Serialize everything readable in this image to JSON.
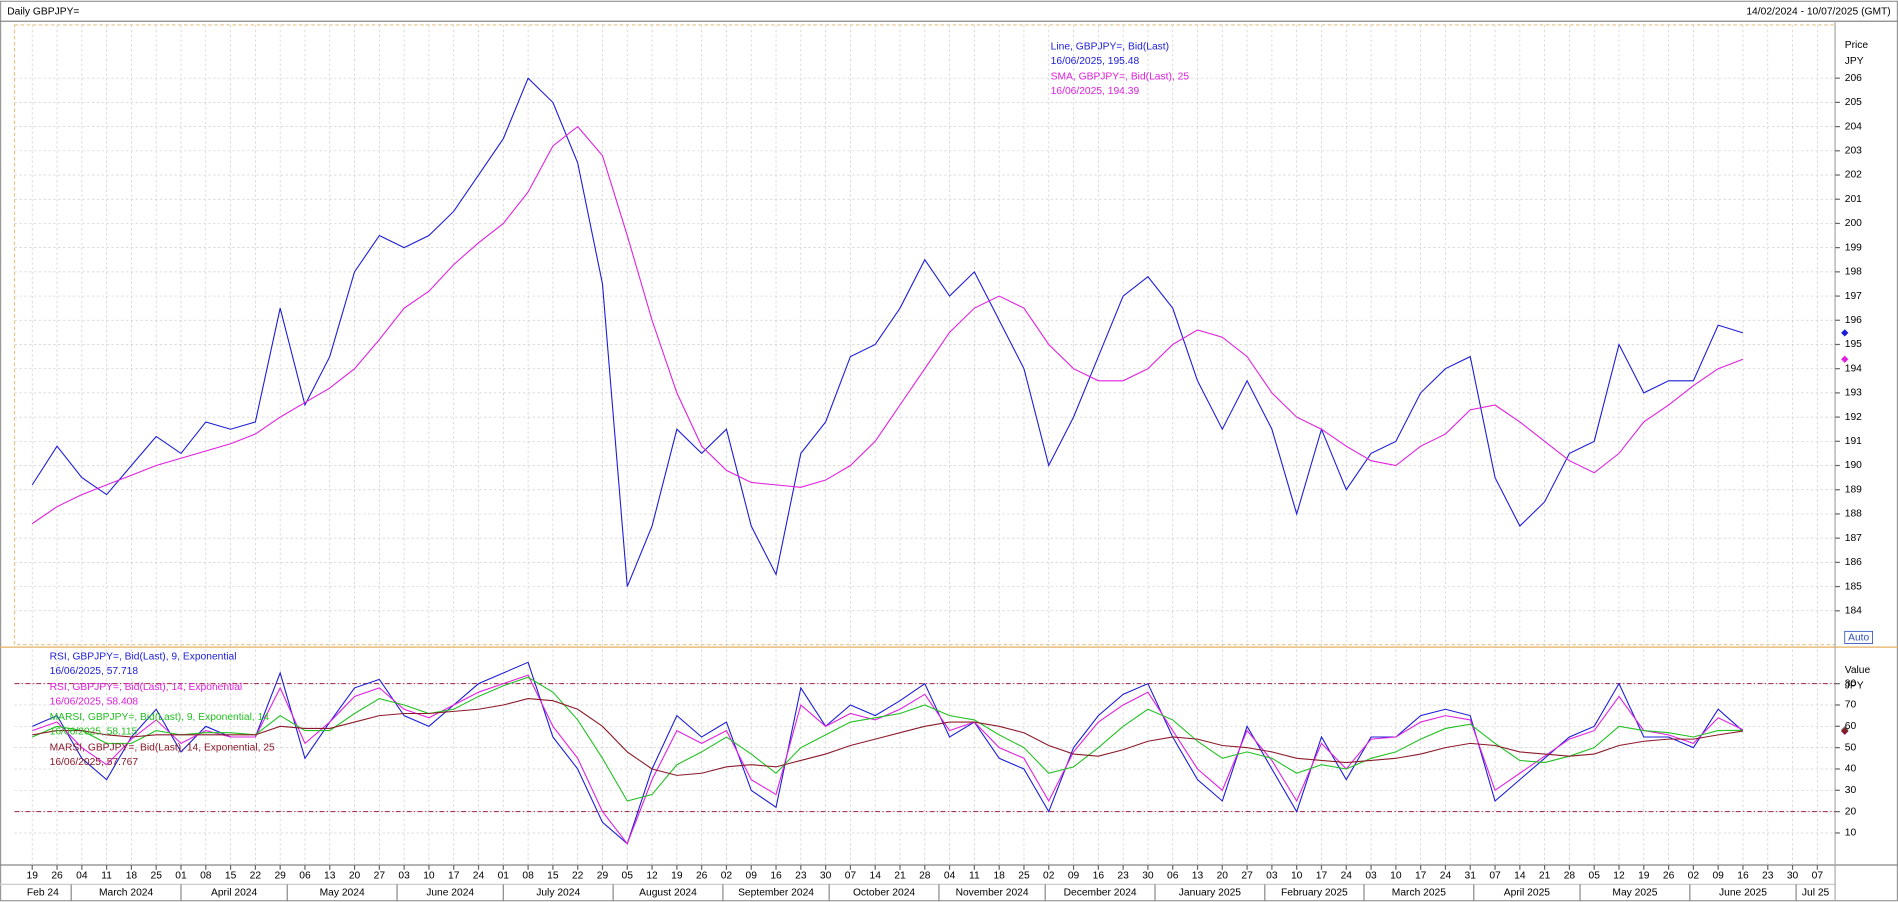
{
  "chart_data": {
    "type": "line",
    "title": "Daily GBPJPY=",
    "date_range": "14/02/2024 - 10/07/2025 (GMT)",
    "button": "Auto",
    "grid": true,
    "xlim": [
      "2024-02-14",
      "2025-07-12"
    ],
    "x": [
      "2024-02-19",
      "2024-02-26",
      "2024-03-04",
      "2024-03-11",
      "2024-03-18",
      "2024-03-25",
      "2024-04-01",
      "2024-04-08",
      "2024-04-15",
      "2024-04-22",
      "2024-04-29",
      "2024-05-06",
      "2024-05-13",
      "2024-05-20",
      "2024-05-27",
      "2024-06-03",
      "2024-06-10",
      "2024-06-17",
      "2024-06-24",
      "2024-07-01",
      "2024-07-08",
      "2024-07-15",
      "2024-07-22",
      "2024-07-29",
      "2024-08-05",
      "2024-08-12",
      "2024-08-19",
      "2024-08-26",
      "2024-09-02",
      "2024-09-09",
      "2024-09-16",
      "2024-09-23",
      "2024-09-30",
      "2024-10-07",
      "2024-10-14",
      "2024-10-21",
      "2024-10-28",
      "2024-11-04",
      "2024-11-11",
      "2024-11-18",
      "2024-11-25",
      "2024-12-02",
      "2024-12-09",
      "2024-12-16",
      "2024-12-23",
      "2024-12-30",
      "2025-01-06",
      "2025-01-13",
      "2025-01-20",
      "2025-01-27",
      "2025-02-03",
      "2025-02-10",
      "2025-02-17",
      "2025-02-24",
      "2025-03-03",
      "2025-03-10",
      "2025-03-17",
      "2025-03-24",
      "2025-03-31",
      "2025-04-07",
      "2025-04-14",
      "2025-04-21",
      "2025-04-28",
      "2025-05-05",
      "2025-05-12",
      "2025-05-19",
      "2025-05-26",
      "2025-06-02",
      "2025-06-09",
      "2025-06-16"
    ],
    "xticks": [
      {
        "value": "2024-02-19",
        "label": "19"
      },
      {
        "value": "2024-02-26",
        "label": "26"
      },
      {
        "value": "2024-03-04",
        "label": "04"
      },
      {
        "value": "2024-03-11",
        "label": "11"
      },
      {
        "value": "2024-03-18",
        "label": "18"
      },
      {
        "value": "2024-03-25",
        "label": "25"
      },
      {
        "value": "2024-04-01",
        "label": "01"
      },
      {
        "value": "2024-04-08",
        "label": "08"
      },
      {
        "value": "2024-04-15",
        "label": "15"
      },
      {
        "value": "2024-04-22",
        "label": "22"
      },
      {
        "value": "2024-04-29",
        "label": "29"
      },
      {
        "value": "2024-05-06",
        "label": "06"
      },
      {
        "value": "2024-05-13",
        "label": "13"
      },
      {
        "value": "2024-05-20",
        "label": "20"
      },
      {
        "value": "2024-05-27",
        "label": "27"
      },
      {
        "value": "2024-06-03",
        "label": "03"
      },
      {
        "value": "2024-06-10",
        "label": "10"
      },
      {
        "value": "2024-06-17",
        "label": "17"
      },
      {
        "value": "2024-06-24",
        "label": "24"
      },
      {
        "value": "2024-07-01",
        "label": "01"
      },
      {
        "value": "2024-07-08",
        "label": "08"
      },
      {
        "value": "2024-07-15",
        "label": "15"
      },
      {
        "value": "2024-07-22",
        "label": "22"
      },
      {
        "value": "2024-07-29",
        "label": "29"
      },
      {
        "value": "2024-08-05",
        "label": "05"
      },
      {
        "value": "2024-08-12",
        "label": "12"
      },
      {
        "value": "2024-08-19",
        "label": "19"
      },
      {
        "value": "2024-08-26",
        "label": "26"
      },
      {
        "value": "2024-09-02",
        "label": "02"
      },
      {
        "value": "2024-09-09",
        "label": "09"
      },
      {
        "value": "2024-09-16",
        "label": "16"
      },
      {
        "value": "2024-09-23",
        "label": "23"
      },
      {
        "value": "2024-09-30",
        "label": "30"
      },
      {
        "value": "2024-10-07",
        "label": "07"
      },
      {
        "value": "2024-10-14",
        "label": "14"
      },
      {
        "value": "2024-10-21",
        "label": "21"
      },
      {
        "value": "2024-10-28",
        "label": "28"
      },
      {
        "value": "2024-11-04",
        "label": "04"
      },
      {
        "value": "2024-11-11",
        "label": "11"
      },
      {
        "value": "2024-11-18",
        "label": "18"
      },
      {
        "value": "2024-11-25",
        "label": "25"
      },
      {
        "value": "2024-12-02",
        "label": "02"
      },
      {
        "value": "2024-12-09",
        "label": "09"
      },
      {
        "value": "2024-12-16",
        "label": "16"
      },
      {
        "value": "2024-12-23",
        "label": "23"
      },
      {
        "value": "2024-12-30",
        "label": "30"
      },
      {
        "value": "2025-01-06",
        "label": "06"
      },
      {
        "value": "2025-01-13",
        "label": "13"
      },
      {
        "value": "2025-01-20",
        "label": "20"
      },
      {
        "value": "2025-01-27",
        "label": "27"
      },
      {
        "value": "2025-02-03",
        "label": "03"
      },
      {
        "value": "2025-02-10",
        "label": "10"
      },
      {
        "value": "2025-02-17",
        "label": "17"
      },
      {
        "value": "2025-02-24",
        "label": "24"
      },
      {
        "value": "2025-03-03",
        "label": "03"
      },
      {
        "value": "2025-03-10",
        "label": "10"
      },
      {
        "value": "2025-03-17",
        "label": "17"
      },
      {
        "value": "2025-03-24",
        "label": "24"
      },
      {
        "value": "2025-03-31",
        "label": "31"
      },
      {
        "value": "2025-04-07",
        "label": "07"
      },
      {
        "value": "2025-04-14",
        "label": "14"
      },
      {
        "value": "2025-04-21",
        "label": "21"
      },
      {
        "value": "2025-04-28",
        "label": "28"
      },
      {
        "value": "2025-05-05",
        "label": "05"
      },
      {
        "value": "2025-05-12",
        "label": "12"
      },
      {
        "value": "2025-05-19",
        "label": "19"
      },
      {
        "value": "2025-05-26",
        "label": "26"
      },
      {
        "value": "2025-06-02",
        "label": "02"
      },
      {
        "value": "2025-06-09",
        "label": "09"
      },
      {
        "value": "2025-06-16",
        "label": "16"
      },
      {
        "value": "2025-06-23",
        "label": "23"
      },
      {
        "value": "2025-06-30",
        "label": "30"
      },
      {
        "value": "2025-07-07",
        "label": "07"
      }
    ],
    "month_labels": [
      {
        "value": "2024-02-01",
        "label": "Feb 24"
      },
      {
        "value": "2024-03-01",
        "label": "March 2024"
      },
      {
        "value": "2024-04-01",
        "label": "April 2024"
      },
      {
        "value": "2024-05-01",
        "label": "May 2024"
      },
      {
        "value": "2024-06-01",
        "label": "June 2024"
      },
      {
        "value": "2024-07-01",
        "label": "July 2024"
      },
      {
        "value": "2024-08-01",
        "label": "August 2024"
      },
      {
        "value": "2024-09-01",
        "label": "September 2024"
      },
      {
        "value": "2024-10-01",
        "label": "October 2024"
      },
      {
        "value": "2024-11-01",
        "label": "November 2024"
      },
      {
        "value": "2024-12-01",
        "label": "December 2024"
      },
      {
        "value": "2025-01-01",
        "label": "January 2025"
      },
      {
        "value": "2025-02-01",
        "label": "February 2025"
      },
      {
        "value": "2025-03-01",
        "label": "March 2025"
      },
      {
        "value": "2025-04-01",
        "label": "April 2025"
      },
      {
        "value": "2025-05-01",
        "label": "May 2025"
      },
      {
        "value": "2025-06-01",
        "label": "June 2025"
      },
      {
        "value": "2025-07-01",
        "label": "Jul 25"
      }
    ],
    "panels": [
      {
        "axis_title": "Price",
        "axis_unit": "JPY",
        "ylim": [
          182.6,
          208.2
        ],
        "yticks": [
          184,
          185,
          186,
          187,
          188,
          189,
          190,
          191,
          192,
          193,
          194,
          195,
          196,
          197,
          198,
          199,
          200,
          201,
          202,
          203,
          204,
          205,
          206
        ],
        "series": [
          {
            "name": "Line, GBPJPY=, Bid(Last)",
            "legend_value": "16/06/2025, 195.48",
            "color": "#1c1cd8",
            "values": [
              189.2,
              190.8,
              189.5,
              188.8,
              190.0,
              191.2,
              190.5,
              191.8,
              191.5,
              191.8,
              196.5,
              192.5,
              194.5,
              198.0,
              199.5,
              199.0,
              199.5,
              200.5,
              202.0,
              203.5,
              206.0,
              205.0,
              202.5,
              197.5,
              185.0,
              187.5,
              191.5,
              190.5,
              191.5,
              187.5,
              185.5,
              190.5,
              191.8,
              194.5,
              195.0,
              196.5,
              198.5,
              197.0,
              198.0,
              196.0,
              194.0,
              190.0,
              192.0,
              194.5,
              197.0,
              197.8,
              196.5,
              193.5,
              191.5,
              193.5,
              191.5,
              188.0,
              191.5,
              189.0,
              190.5,
              191.0,
              193.0,
              194.0,
              194.5,
              189.5,
              187.5,
              188.5,
              190.5,
              191.0,
              195.0,
              193.0,
              193.5,
              193.5,
              195.8,
              195.48
            ]
          },
          {
            "name": "SMA, GBPJPY=, Bid(Last),  25",
            "legend_value": "16/06/2025, 194.39",
            "color": "#e020e0",
            "values": [
              187.6,
              188.3,
              188.8,
              189.2,
              189.6,
              190.0,
              190.3,
              190.6,
              190.9,
              191.3,
              192.0,
              192.6,
              193.2,
              194.0,
              195.2,
              196.5,
              197.2,
              198.3,
              199.2,
              200.0,
              201.3,
              203.2,
              204.0,
              202.8,
              199.5,
              196.0,
              193.0,
              190.8,
              189.8,
              189.3,
              189.2,
              189.1,
              189.4,
              190.0,
              191.0,
              192.5,
              194.0,
              195.5,
              196.5,
              197.0,
              196.5,
              195.0,
              194.0,
              193.5,
              193.5,
              194.0,
              195.0,
              195.6,
              195.3,
              194.5,
              193.0,
              192.0,
              191.5,
              190.8,
              190.2,
              190.0,
              190.8,
              191.3,
              192.3,
              192.5,
              191.8,
              191.0,
              190.2,
              189.7,
              190.5,
              191.8,
              192.5,
              193.3,
              194.0,
              194.39
            ]
          }
        ]
      },
      {
        "axis_title": "Value",
        "axis_unit": "JPY",
        "ylim": [
          -5,
          96
        ],
        "yticks": [
          10,
          20,
          30,
          40,
          50,
          60,
          70,
          80
        ],
        "ref_lines": [
          80,
          20
        ],
        "ref_color": "#a02040",
        "series": [
          {
            "name": "RSI, GBPJPY=, Bid(Last),  9, Exponential",
            "legend_value": "16/06/2025, 57.718",
            "color": "#1c1cd8",
            "values": [
              60,
              65,
              45,
              35,
              55,
              68,
              48,
              60,
              55,
              55,
              85,
              45,
              62,
              78,
              82,
              65,
              60,
              70,
              80,
              85,
              90,
              55,
              40,
              15,
              5,
              40,
              65,
              55,
              62,
              30,
              22,
              78,
              60,
              70,
              65,
              72,
              80,
              55,
              62,
              45,
              40,
              20,
              50,
              65,
              75,
              80,
              55,
              35,
              25,
              60,
              40,
              20,
              55,
              35,
              55,
              55,
              65,
              68,
              65,
              25,
              35,
              45,
              55,
              60,
              80,
              55,
              55,
              50,
              68,
              57.718
            ]
          },
          {
            "name": "RSI, GBPJPY=, Bid(Last),  14, Exponential",
            "legend_value": "16/06/2025, 58.408",
            "color": "#e020e0",
            "values": [
              58,
              62,
              50,
              42,
              54,
              63,
              52,
              58,
              55,
              55,
              78,
              52,
              62,
              74,
              78,
              68,
              64,
              70,
              76,
              80,
              84,
              60,
              45,
              20,
              5,
              35,
              58,
              52,
              58,
              35,
              28,
              70,
              60,
              66,
              63,
              68,
              75,
              58,
              62,
              50,
              45,
              25,
              48,
              62,
              70,
              76,
              58,
              40,
              30,
              58,
              44,
              25,
              52,
              40,
              54,
              55,
              62,
              65,
              63,
              30,
              38,
              46,
              54,
              58,
              74,
              58,
              56,
              52,
              64,
              58.408
            ]
          },
          {
            "name": "MARSI, GBPJPY=, Bid(Last),  9, Exponential, 14",
            "legend_value": "16/06/2025, 58.115",
            "color": "#22c022",
            "values": [
              55,
              60,
              58,
              52,
              52,
              58,
              56,
              57,
              57,
              56,
              65,
              58,
              58,
              66,
              73,
              70,
              66,
              68,
              74,
              79,
              83,
              76,
              63,
              45,
              25,
              28,
              42,
              48,
              55,
              47,
              38,
              50,
              56,
              62,
              64,
              66,
              70,
              65,
              63,
              56,
              50,
              38,
              41,
              50,
              60,
              68,
              63,
              53,
              45,
              48,
              45,
              38,
              42,
              40,
              45,
              48,
              54,
              59,
              61,
              52,
              44,
              43,
              46,
              50,
              60,
              58,
              57,
              55,
              58,
              58.115
            ]
          },
          {
            "name": "MARSI, GBPJPY=, Bid(Last),  14, Exponential, 25",
            "legend_value": "16/06/2025, 57.767",
            "color": "#8b1a2a",
            "values": [
              56,
              58,
              58,
              56,
              55,
              56,
              56,
              56,
              56,
              56,
              60,
              59,
              59,
              62,
              65,
              66,
              66,
              67,
              68,
              70,
              73,
              72,
              68,
              60,
              48,
              40,
              37,
              38,
              41,
              42,
              41,
              44,
              47,
              51,
              54,
              57,
              60,
              62,
              62,
              60,
              57,
              51,
              47,
              46,
              49,
              53,
              55,
              54,
              51,
              50,
              48,
              45,
              44,
              43,
              44,
              45,
              47,
              50,
              52,
              51,
              48,
              47,
              46,
              47,
              51,
              53,
              54,
              54,
              56,
              57.767
            ]
          }
        ]
      }
    ]
  }
}
